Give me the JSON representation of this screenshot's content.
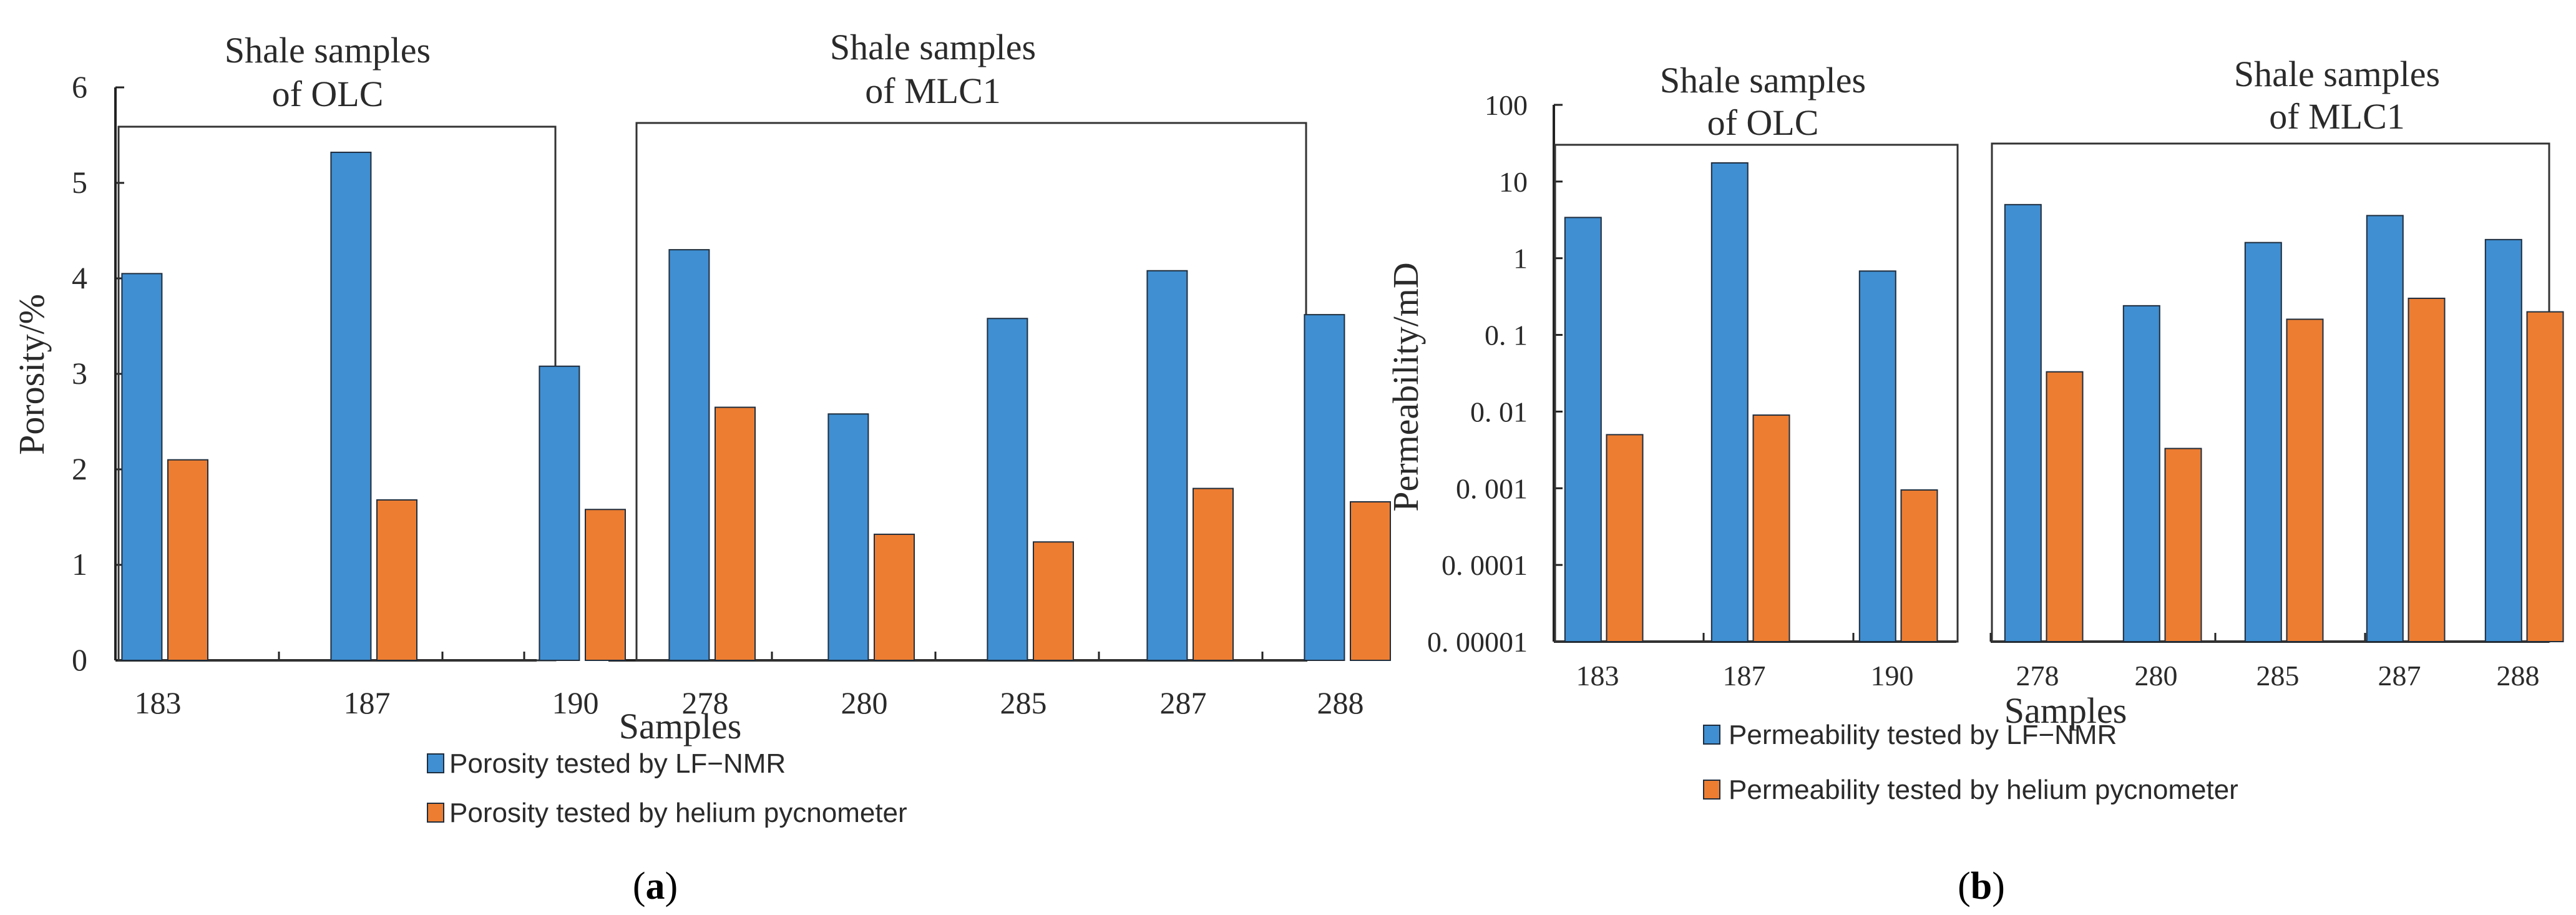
{
  "colors": {
    "nmr": "#3f8fd2",
    "helium": "#ed7d31",
    "bar_edge": "#1f2d3d",
    "axis": "#222222"
  },
  "chart_data": [
    {
      "id": "a",
      "type": "bar",
      "caption_open": "(",
      "caption_letter": "a",
      "caption_close": ")",
      "xlabel": "Samples",
      "ylabel": "Porosity/%",
      "ylim": [
        0,
        6
      ],
      "yticks": [
        "0",
        "1",
        "2",
        "3",
        "4",
        "5",
        "6"
      ],
      "scale": "linear",
      "groups": [
        {
          "title": "Shale samples of OLC",
          "title_lines": [
            "Shale samples",
            "of OLC"
          ],
          "categories": [
            "183",
            "187",
            "190"
          ]
        },
        {
          "title": "Shale samples of MLC1",
          "title_lines": [
            "Shale samples",
            "of MLC1"
          ],
          "categories": [
            "278",
            "280",
            "285",
            "287",
            "288"
          ]
        }
      ],
      "categories": [
        "183",
        "187",
        "190",
        "278",
        "280",
        "285",
        "287",
        "288"
      ],
      "series": [
        {
          "name": "Porosity tested by LF-NMR",
          "color_key": "nmr",
          "values": [
            4.05,
            5.32,
            3.08,
            4.3,
            2.58,
            3.58,
            4.08,
            3.62
          ]
        },
        {
          "name": "Porosity tested by helium pycnometer",
          "color_key": "helium",
          "values": [
            2.1,
            1.68,
            1.58,
            2.65,
            1.32,
            1.24,
            1.8,
            1.66
          ]
        }
      ],
      "legend": [
        "Porosity tested by LF−NMR",
        "Porosity tested by helium pycnometer"
      ]
    },
    {
      "id": "b",
      "type": "bar",
      "caption_open": "(",
      "caption_letter": "b",
      "caption_close": ")",
      "xlabel": "Samples",
      "ylabel": "Permeability/mD",
      "ylim": [
        1e-05,
        100
      ],
      "yticks": [
        "0. 00001",
        "0. 0001",
        "0. 001",
        "0. 01",
        "0. 1",
        "1",
        "10",
        "100"
      ],
      "scale": "log",
      "groups": [
        {
          "title": "Shale samples of OLC",
          "title_lines": [
            "Shale samples",
            "of OLC"
          ],
          "categories": [
            "183",
            "187",
            "190"
          ]
        },
        {
          "title": "Shale samples of MLC1",
          "title_lines": [
            "Shale samples",
            "of MLC1"
          ],
          "categories": [
            "278",
            "280",
            "285",
            "287",
            "288"
          ]
        }
      ],
      "categories": [
        "183",
        "187",
        "190",
        "278",
        "280",
        "285",
        "287",
        "288"
      ],
      "series": [
        {
          "name": "Permeability tested by LF-NMR",
          "color_key": "nmr",
          "values": [
            3.4,
            17.5,
            0.68,
            5.0,
            0.24,
            1.6,
            3.6,
            1.75
          ]
        },
        {
          "name": "Permeability tested by helium pycnometer",
          "color_key": "helium",
          "values": [
            0.005,
            0.009,
            0.00095,
            0.033,
            0.0033,
            0.16,
            0.3,
            0.2
          ]
        }
      ],
      "legend": [
        "Permeability tested by LF−NMR",
        "Permeability tested by helium pycnometer"
      ]
    }
  ]
}
